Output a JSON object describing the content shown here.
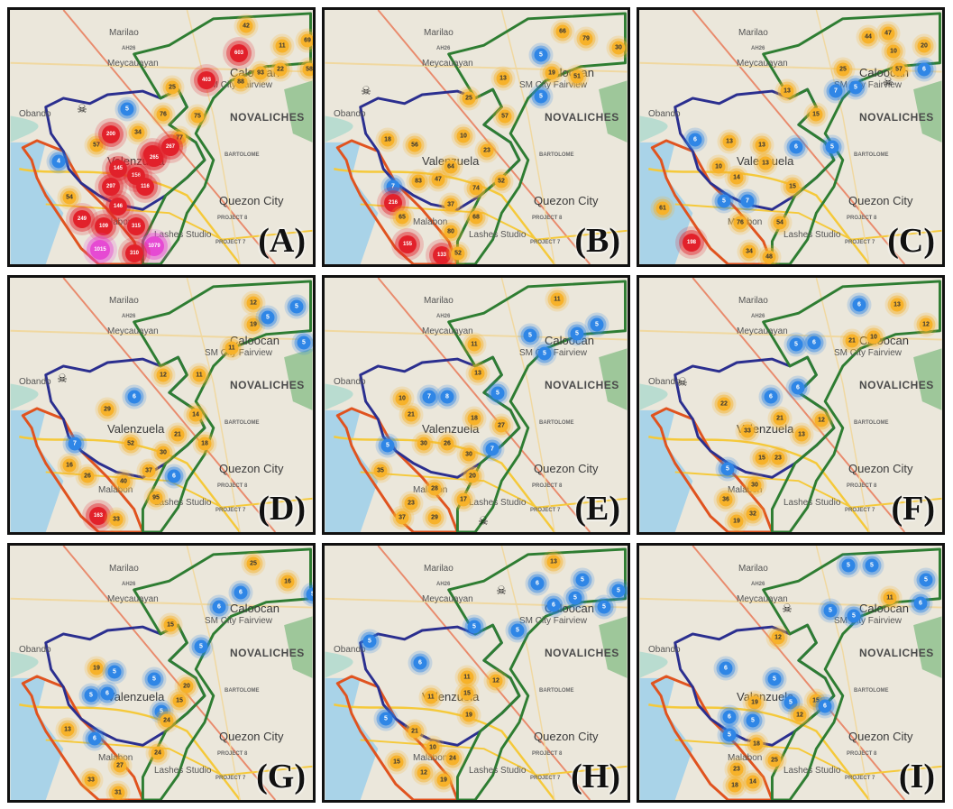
{
  "labels": {
    "marilao": "Marilao",
    "meycauayan": "Meycauayan",
    "caloocan": "Caloocan",
    "novaliches": "NOVALICHES",
    "valenzuela": "Valenzuela",
    "quezon_city": "Quezon City",
    "malabon": "Malabon",
    "bartolome": "BARTOLOME",
    "project8": "PROJECT 8",
    "project7": "PROJECT 7",
    "lashes": "Lashes Studio",
    "sm": "SM City Fairview",
    "obando": "Obando",
    "ah26": "AH26"
  },
  "colors": {
    "valenzuela_boundary": "#2b2f8f",
    "caloocan_boundary": "#2e7d32",
    "malabon_navotas_boundary": "#e0531f",
    "highway": "#f5c93a",
    "water": "#a9d3e8",
    "cluster_yellow": "#f7b22a",
    "cluster_blue": "#2f86e6",
    "cluster_red": "#e2212b",
    "cluster_magenta": "#e64ad3"
  },
  "panels": [
    {
      "letter": "(A)",
      "clusters": [
        {
          "v": "42",
          "c": "y"
        },
        {
          "v": "11",
          "c": "y"
        },
        {
          "v": "69",
          "c": "y"
        },
        {
          "v": "603",
          "c": "r"
        },
        {
          "v": "93",
          "c": "y"
        },
        {
          "v": "22",
          "c": "y"
        },
        {
          "v": "58",
          "c": "y"
        },
        {
          "v": "403",
          "c": "r"
        },
        {
          "v": "88",
          "c": "y"
        },
        {
          "v": "25",
          "c": "y"
        },
        {
          "v": "5",
          "c": "b"
        },
        {
          "v": "76",
          "c": "y"
        },
        {
          "v": "75",
          "c": "y"
        },
        {
          "v": "34",
          "c": "y"
        },
        {
          "v": "77",
          "c": "y"
        },
        {
          "v": "57",
          "c": "y"
        },
        {
          "v": "200",
          "c": "r"
        },
        {
          "v": "301",
          "c": "r"
        },
        {
          "v": "4",
          "c": "b"
        },
        {
          "v": "145",
          "c": "r"
        },
        {
          "v": "265",
          "c": "r"
        },
        {
          "v": "267",
          "c": "r"
        },
        {
          "v": "156",
          "c": "r"
        },
        {
          "v": "54",
          "c": "y"
        },
        {
          "v": "297",
          "c": "r"
        },
        {
          "v": "116",
          "c": "r"
        },
        {
          "v": "146",
          "c": "r"
        },
        {
          "v": "249",
          "c": "r"
        },
        {
          "v": "109",
          "c": "r"
        },
        {
          "v": "315",
          "c": "r"
        },
        {
          "v": "1015",
          "c": "m"
        },
        {
          "v": "1079",
          "c": "m"
        },
        {
          "v": "310",
          "c": "r"
        }
      ]
    },
    {
      "letter": "(B)",
      "clusters": [
        {
          "v": "66",
          "c": "y"
        },
        {
          "v": "79",
          "c": "y"
        },
        {
          "v": "30",
          "c": "y"
        },
        {
          "v": "5",
          "c": "b"
        },
        {
          "v": "19",
          "c": "y"
        },
        {
          "v": "51",
          "c": "y"
        },
        {
          "v": "13",
          "c": "y"
        },
        {
          "v": "25",
          "c": "y"
        },
        {
          "v": "5",
          "c": "b"
        },
        {
          "v": "57",
          "c": "y"
        },
        {
          "v": "18",
          "c": "y"
        },
        {
          "v": "56",
          "c": "y"
        },
        {
          "v": "10",
          "c": "y"
        },
        {
          "v": "23",
          "c": "y"
        },
        {
          "v": "64",
          "c": "y"
        },
        {
          "v": "83",
          "c": "y"
        },
        {
          "v": "47",
          "c": "y"
        },
        {
          "v": "52",
          "c": "y"
        },
        {
          "v": "74",
          "c": "y"
        },
        {
          "v": "7",
          "c": "b"
        },
        {
          "v": "37",
          "c": "y"
        },
        {
          "v": "68",
          "c": "y"
        },
        {
          "v": "216",
          "c": "r"
        },
        {
          "v": "65",
          "c": "y"
        },
        {
          "v": "80",
          "c": "y"
        },
        {
          "v": "155",
          "c": "r"
        },
        {
          "v": "133",
          "c": "r"
        },
        {
          "v": "52",
          "c": "y"
        }
      ]
    },
    {
      "letter": "(C)",
      "clusters": [
        {
          "v": "44",
          "c": "y"
        },
        {
          "v": "47",
          "c": "y"
        },
        {
          "v": "20",
          "c": "y"
        },
        {
          "v": "10",
          "c": "y"
        },
        {
          "v": "57",
          "c": "y"
        },
        {
          "v": "25",
          "c": "y"
        },
        {
          "v": "6",
          "c": "b"
        },
        {
          "v": "13",
          "c": "y"
        },
        {
          "v": "7",
          "c": "b"
        },
        {
          "v": "5",
          "c": "b"
        },
        {
          "v": "15",
          "c": "y"
        },
        {
          "v": "6",
          "c": "b"
        },
        {
          "v": "13",
          "c": "y"
        },
        {
          "v": "13",
          "c": "y"
        },
        {
          "v": "13",
          "c": "y"
        },
        {
          "v": "6",
          "c": "b"
        },
        {
          "v": "5",
          "c": "b"
        },
        {
          "v": "10",
          "c": "y"
        },
        {
          "v": "14",
          "c": "y"
        },
        {
          "v": "15",
          "c": "y"
        },
        {
          "v": "5",
          "c": "b"
        },
        {
          "v": "7",
          "c": "b"
        },
        {
          "v": "61",
          "c": "y"
        },
        {
          "v": "76",
          "c": "y"
        },
        {
          "v": "54",
          "c": "y"
        },
        {
          "v": "198",
          "c": "r"
        },
        {
          "v": "34",
          "c": "y"
        },
        {
          "v": "48",
          "c": "y"
        }
      ]
    },
    {
      "letter": "(D)",
      "clusters": [
        {
          "v": "12",
          "c": "y"
        },
        {
          "v": "19",
          "c": "y"
        },
        {
          "v": "5",
          "c": "b"
        },
        {
          "v": "5",
          "c": "b"
        },
        {
          "v": "5",
          "c": "b"
        },
        {
          "v": "11",
          "c": "y"
        },
        {
          "v": "12",
          "c": "y"
        },
        {
          "v": "11",
          "c": "y"
        },
        {
          "v": "6",
          "c": "b"
        },
        {
          "v": "29",
          "c": "y"
        },
        {
          "v": "14",
          "c": "y"
        },
        {
          "v": "21",
          "c": "y"
        },
        {
          "v": "7",
          "c": "b"
        },
        {
          "v": "52",
          "c": "y"
        },
        {
          "v": "30",
          "c": "y"
        },
        {
          "v": "18",
          "c": "y"
        },
        {
          "v": "16",
          "c": "y"
        },
        {
          "v": "37",
          "c": "y"
        },
        {
          "v": "26",
          "c": "y"
        },
        {
          "v": "40",
          "c": "y"
        },
        {
          "v": "6",
          "c": "b"
        },
        {
          "v": "95",
          "c": "y"
        },
        {
          "v": "163",
          "c": "r"
        },
        {
          "v": "33",
          "c": "y"
        }
      ]
    },
    {
      "letter": "(E)",
      "clusters": [
        {
          "v": "11",
          "c": "y"
        },
        {
          "v": "5",
          "c": "b"
        },
        {
          "v": "5",
          "c": "b"
        },
        {
          "v": "5",
          "c": "b"
        },
        {
          "v": "11",
          "c": "y"
        },
        {
          "v": "5",
          "c": "b"
        },
        {
          "v": "13",
          "c": "y"
        },
        {
          "v": "10",
          "c": "y"
        },
        {
          "v": "7",
          "c": "b"
        },
        {
          "v": "8",
          "c": "b"
        },
        {
          "v": "5",
          "c": "b"
        },
        {
          "v": "21",
          "c": "y"
        },
        {
          "v": "18",
          "c": "y"
        },
        {
          "v": "27",
          "c": "y"
        },
        {
          "v": "5",
          "c": "b"
        },
        {
          "v": "30",
          "c": "y"
        },
        {
          "v": "26",
          "c": "y"
        },
        {
          "v": "30",
          "c": "y"
        },
        {
          "v": "7",
          "c": "b"
        },
        {
          "v": "35",
          "c": "y"
        },
        {
          "v": "20",
          "c": "y"
        },
        {
          "v": "28",
          "c": "y"
        },
        {
          "v": "23",
          "c": "y"
        },
        {
          "v": "17",
          "c": "y"
        },
        {
          "v": "37",
          "c": "y"
        },
        {
          "v": "29",
          "c": "y"
        }
      ]
    },
    {
      "letter": "(F)",
      "clusters": [
        {
          "v": "6",
          "c": "b"
        },
        {
          "v": "13",
          "c": "y"
        },
        {
          "v": "12",
          "c": "y"
        },
        {
          "v": "21",
          "c": "y"
        },
        {
          "v": "10",
          "c": "y"
        },
        {
          "v": "5",
          "c": "b"
        },
        {
          "v": "6",
          "c": "b"
        },
        {
          "v": "6",
          "c": "b"
        },
        {
          "v": "22",
          "c": "y"
        },
        {
          "v": "6",
          "c": "b"
        },
        {
          "v": "21",
          "c": "y"
        },
        {
          "v": "12",
          "c": "y"
        },
        {
          "v": "33",
          "c": "y"
        },
        {
          "v": "13",
          "c": "y"
        },
        {
          "v": "15",
          "c": "y"
        },
        {
          "v": "23",
          "c": "y"
        },
        {
          "v": "5",
          "c": "b"
        },
        {
          "v": "30",
          "c": "y"
        },
        {
          "v": "36",
          "c": "y"
        },
        {
          "v": "32",
          "c": "y"
        },
        {
          "v": "19",
          "c": "y"
        }
      ]
    },
    {
      "letter": "(G)",
      "clusters": [
        {
          "v": "25",
          "c": "y"
        },
        {
          "v": "16",
          "c": "y"
        },
        {
          "v": "5",
          "c": "b"
        },
        {
          "v": "6",
          "c": "b"
        },
        {
          "v": "6",
          "c": "b"
        },
        {
          "v": "15",
          "c": "y"
        },
        {
          "v": "5",
          "c": "b"
        },
        {
          "v": "19",
          "c": "y"
        },
        {
          "v": "5",
          "c": "b"
        },
        {
          "v": "5",
          "c": "b"
        },
        {
          "v": "6",
          "c": "b"
        },
        {
          "v": "5",
          "c": "b"
        },
        {
          "v": "20",
          "c": "y"
        },
        {
          "v": "15",
          "c": "y"
        },
        {
          "v": "5",
          "c": "b"
        },
        {
          "v": "24",
          "c": "y"
        },
        {
          "v": "13",
          "c": "y"
        },
        {
          "v": "6",
          "c": "b"
        },
        {
          "v": "24",
          "c": "y"
        },
        {
          "v": "27",
          "c": "y"
        },
        {
          "v": "33",
          "c": "y"
        },
        {
          "v": "31",
          "c": "y"
        }
      ]
    },
    {
      "letter": "(H)",
      "clusters": [
        {
          "v": "13",
          "c": "y"
        },
        {
          "v": "6",
          "c": "b"
        },
        {
          "v": "5",
          "c": "b"
        },
        {
          "v": "5",
          "c": "b"
        },
        {
          "v": "5",
          "c": "b"
        },
        {
          "v": "5",
          "c": "b"
        },
        {
          "v": "6",
          "c": "b"
        },
        {
          "v": "5",
          "c": "b"
        },
        {
          "v": "5",
          "c": "b"
        },
        {
          "v": "5",
          "c": "b"
        },
        {
          "v": "6",
          "c": "b"
        },
        {
          "v": "11",
          "c": "y"
        },
        {
          "v": "12",
          "c": "y"
        },
        {
          "v": "15",
          "c": "y"
        },
        {
          "v": "11",
          "c": "y"
        },
        {
          "v": "19",
          "c": "y"
        },
        {
          "v": "5",
          "c": "b"
        },
        {
          "v": "21",
          "c": "y"
        },
        {
          "v": "10",
          "c": "y"
        },
        {
          "v": "24",
          "c": "y"
        },
        {
          "v": "15",
          "c": "y"
        },
        {
          "v": "12",
          "c": "y"
        },
        {
          "v": "19",
          "c": "y"
        }
      ]
    },
    {
      "letter": "(I)",
      "clusters": [
        {
          "v": "5",
          "c": "b"
        },
        {
          "v": "5",
          "c": "b"
        },
        {
          "v": "5",
          "c": "b"
        },
        {
          "v": "11",
          "c": "y"
        },
        {
          "v": "5",
          "c": "b"
        },
        {
          "v": "5",
          "c": "b"
        },
        {
          "v": "6",
          "c": "b"
        },
        {
          "v": "12",
          "c": "y"
        },
        {
          "v": "6",
          "c": "b"
        },
        {
          "v": "5",
          "c": "b"
        },
        {
          "v": "19",
          "c": "y"
        },
        {
          "v": "5",
          "c": "b"
        },
        {
          "v": "15",
          "c": "y"
        },
        {
          "v": "6",
          "c": "b"
        },
        {
          "v": "12",
          "c": "y"
        },
        {
          "v": "5",
          "c": "b"
        },
        {
          "v": "6",
          "c": "b"
        },
        {
          "v": "5",
          "c": "b"
        },
        {
          "v": "18",
          "c": "y"
        },
        {
          "v": "25",
          "c": "y"
        },
        {
          "v": "23",
          "c": "y"
        },
        {
          "v": "14",
          "c": "y"
        },
        {
          "v": "18",
          "c": "y"
        }
      ]
    }
  ]
}
